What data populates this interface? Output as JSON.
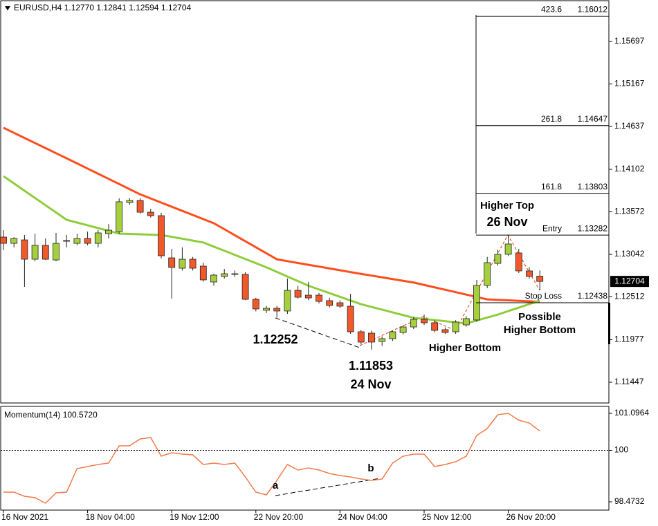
{
  "chart_data": [
    {
      "type": "candlestick",
      "title": "EURUSD,H4  1.12770 1.12841 1.12594 1.12704",
      "categories": [
        "16 Nov 2021",
        null,
        null,
        null,
        null,
        null,
        null,
        null,
        "18 Nov 04:00",
        null,
        null,
        null,
        null,
        null,
        null,
        null,
        "19 Nov 12:00",
        null,
        null,
        null,
        null,
        null,
        null,
        null,
        "22 Nov 20:00",
        null,
        null,
        null,
        null,
        null,
        null,
        null,
        "24 Nov 04:00",
        null,
        null,
        null,
        null,
        null,
        null,
        null,
        "25 Nov 12:00",
        null,
        null,
        null,
        null,
        null,
        null,
        null,
        "26 Nov 20:00",
        null,
        null,
        null
      ],
      "open": [
        1.13257,
        1.13179,
        1.13222,
        1.12981,
        1.13154,
        1.12972,
        1.13214,
        1.13179,
        1.1324,
        1.13179,
        1.133,
        1.13326,
        1.13688,
        1.13714,
        1.13567,
        1.13524,
        1.12998,
        1.12869,
        1.12981,
        1.12895,
        1.12697,
        1.12766,
        1.12792,
        1.12792,
        1.12481,
        1.12344,
        1.12369,
        1.12335,
        1.12593,
        1.12533,
        1.12533,
        1.12464,
        1.12438,
        1.12395,
        1.12076,
        1.12059,
        1.11955,
        1.1199,
        1.12067,
        1.12136,
        1.12231,
        1.12188,
        1.12102,
        1.12076,
        1.12162,
        1.12223,
        1.12654,
        1.12929,
        1.13042,
        1.13059,
        1.12835,
        1.1277
      ],
      "high": [
        1.13343,
        1.13257,
        1.13283,
        1.133,
        1.1324,
        1.13309,
        1.13283,
        1.133,
        1.13326,
        1.13343,
        1.1342,
        1.1374,
        1.1374,
        1.1374,
        1.1361,
        1.1356,
        1.13111,
        1.13128,
        1.1301,
        1.12938,
        1.128,
        1.1286,
        1.1284,
        1.1282,
        1.125,
        1.124,
        1.124,
        1.1274,
        1.1265,
        1.12697,
        1.1256,
        1.125,
        1.1247,
        1.1255,
        1.121,
        1.1209,
        1.1202,
        1.1209,
        1.1216,
        1.1226,
        1.1229,
        1.1222,
        1.1213,
        1.1222,
        1.1227,
        1.12723,
        1.1301,
        1.131,
        1.13282,
        1.13111,
        1.1288,
        1.12841
      ],
      "low": [
        1.13093,
        1.13128,
        1.12636,
        1.12955,
        1.12972,
        1.12955,
        1.13128,
        1.13154,
        1.13154,
        1.13128,
        1.1324,
        1.133,
        1.1366,
        1.1355,
        1.135,
        1.1299,
        1.1249,
        1.1284,
        1.1284,
        1.127,
        1.1265,
        1.1274,
        1.1276,
        1.1247,
        1.1233,
        1.1231,
        1.12252,
        1.123,
        1.1249,
        1.1247,
        1.1243,
        1.1238,
        1.1237,
        1.1205,
        1.1192,
        1.11853,
        1.119,
        1.1196,
        1.1204,
        1.1211,
        1.1216,
        1.1207,
        1.1205,
        1.1205,
        1.1214,
        1.122,
        1.1262,
        1.129,
        1.1302,
        1.1281,
        1.1274,
        1.12594
      ],
      "close": [
        1.13179,
        1.1324,
        1.12981,
        1.13154,
        1.12981,
        1.13179,
        1.13205,
        1.1324,
        1.13179,
        1.13309,
        1.13343,
        1.13697,
        1.13714,
        1.13567,
        1.13524,
        1.13024,
        1.12878,
        1.12981,
        1.12869,
        1.12723,
        1.12783,
        1.128,
        1.128,
        1.12481,
        1.12361,
        1.12369,
        1.12335,
        1.12593,
        1.12507,
        1.12498,
        1.12455,
        1.12404,
        1.12395,
        1.12076,
        1.11947,
        1.11947,
        1.1199,
        1.12076,
        1.12136,
        1.12231,
        1.12188,
        1.12093,
        1.12067,
        1.12197,
        1.1224,
        1.12654,
        1.12938,
        1.13042,
        1.13171,
        1.12835,
        1.12766,
        1.12704
      ],
      "up_color": "#a6cf3e",
      "down_color": "#f2592a",
      "moving_averages": [
        {
          "color": "#ff4d1c",
          "values": [
            1.1462,
            1.14557,
            1.14493,
            1.1443,
            1.14367,
            1.14303,
            1.1424,
            1.14176,
            1.14111,
            1.14047,
            1.13983,
            1.13919,
            1.13854,
            1.1379,
            1.13739,
            1.13687,
            1.13636,
            1.13584,
            1.13533,
            1.13481,
            1.1343,
            1.13355,
            1.1328,
            1.13205,
            1.1313,
            1.13055,
            1.1298,
            1.12957,
            1.12934,
            1.12911,
            1.12889,
            1.12866,
            1.12843,
            1.1282,
            1.12798,
            1.12777,
            1.12755,
            1.12733,
            1.12712,
            1.1269,
            1.1266,
            1.1263,
            1.126,
            1.1257,
            1.1254,
            1.1251,
            1.1248,
            1.12474,
            1.12468,
            1.12462,
            1.12456,
            1.1245
          ]
        },
        {
          "color": "#8fcd3b",
          "values": [
            1.14016,
            1.13926,
            1.13835,
            1.13745,
            1.13654,
            1.13564,
            1.13473,
            1.13438,
            1.13404,
            1.13369,
            1.13335,
            1.133,
            1.13296,
            1.13292,
            1.13287,
            1.13283,
            1.1326,
            1.13237,
            1.13213,
            1.1319,
            1.13138,
            1.13087,
            1.13035,
            1.12983,
            1.12932,
            1.1288,
            1.12823,
            1.12765,
            1.12708,
            1.1265,
            1.12604,
            1.12558,
            1.12512,
            1.12466,
            1.1242,
            1.12386,
            1.12352,
            1.12318,
            1.12284,
            1.1225,
            1.12236,
            1.12222,
            1.12208,
            1.12194,
            1.1218,
            1.12217,
            1.12253,
            1.1229,
            1.12334,
            1.12377,
            1.12421,
            1.12464
          ]
        }
      ],
      "ylim": [
        1.11188,
        1.16214
      ],
      "yticks": [
        1.15697,
        1.15167,
        1.14637,
        1.14102,
        1.13572,
        1.13042,
        1.12512,
        1.11977,
        1.11447
      ],
      "last_price": 1.12704,
      "levels": [
        {
          "label": "423.6",
          "price": 1.16012
        },
        {
          "label": "261.8",
          "price": 1.14647
        },
        {
          "label": "161.8",
          "price": 1.13803
        },
        {
          "label": "Entry",
          "price": 1.13282
        },
        {
          "label": "Stop Loss",
          "price": 1.12438
        }
      ],
      "annotations": [
        "1.12252",
        "1.11853",
        "24 Nov",
        "Higher Bottom",
        "Higher Top",
        "26 Nov",
        "Possible",
        "Higher Bottom"
      ]
    },
    {
      "type": "line",
      "title": "Momentum(14) 100.5720",
      "color": "#f07a4a",
      "values": [
        98.76,
        98.76,
        98.637,
        98.596,
        98.432,
        98.739,
        98.76,
        99.457,
        99.518,
        99.58,
        99.621,
        100.133,
        100.133,
        100.338,
        100.379,
        99.825,
        99.928,
        99.887,
        99.866,
        99.58,
        99.621,
        99.58,
        99.621,
        99.211,
        98.76,
        98.678,
        99.108,
        99.58,
        99.416,
        99.477,
        99.416,
        99.313,
        99.252,
        99.211,
        99.149,
        99.108,
        99.149,
        99.621,
        99.825,
        99.887,
        99.887,
        99.518,
        99.58,
        99.661,
        99.825,
        100.44,
        100.645,
        101.055,
        101.096,
        100.891,
        100.809,
        100.572
      ],
      "ylim": [
        98.227,
        101.301
      ],
      "yticks": [
        101.0964,
        100,
        98.4732
      ],
      "reference_line": 100,
      "annotations": [
        "a",
        "b"
      ]
    }
  ]
}
